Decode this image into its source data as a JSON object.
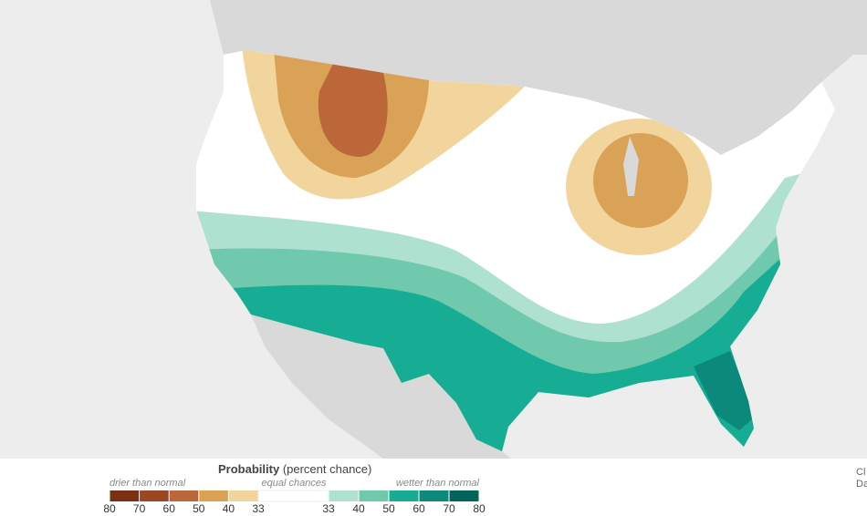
{
  "legend": {
    "title": "Probability",
    "subtitle": "(percent chance)",
    "left_label": "drier than normal",
    "center_label": "equal chances",
    "right_label": "wetter than normal",
    "dry_ticks": [
      80,
      70,
      60,
      50,
      40,
      33
    ],
    "dry_colors": [
      "#7b2f14",
      "#9b4725",
      "#bb673a",
      "#d9a256",
      "#f1d59d"
    ],
    "wet_ticks": [
      33,
      40,
      50,
      60,
      70,
      80
    ],
    "wet_colors": [
      "#afe1d0",
      "#70c9ad",
      "#17ad94",
      "#0b8a7b",
      "#05645a"
    ]
  },
  "side_text": [
    "Cl",
    "Da"
  ]
}
